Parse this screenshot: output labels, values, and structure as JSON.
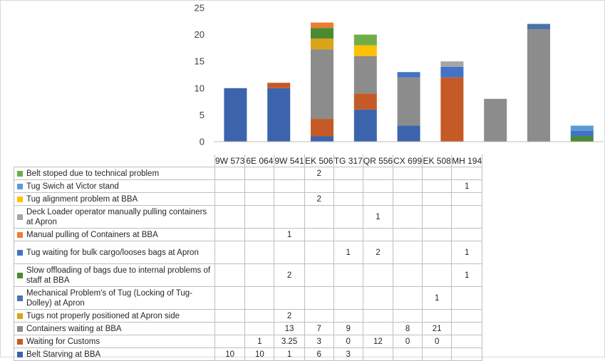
{
  "chart_data": {
    "type": "bar",
    "stacked": true,
    "categories": [
      "9W 573",
      "6E 064",
      "9W 541",
      "EK 506",
      "TG 317",
      "QR 556",
      "CX 699",
      "EK 508",
      "MH 194"
    ],
    "ylim": [
      0,
      25
    ],
    "yticks": [
      0,
      5,
      10,
      15,
      20,
      25
    ],
    "series": [
      {
        "name": "Belt Starving at BBA",
        "color": "#3b64ad",
        "values": [
          10,
          10,
          1,
          6,
          3,
          null,
          null,
          null,
          null
        ],
        "labels": [
          "10",
          "10",
          "1",
          "6",
          "3",
          "",
          "",
          "",
          ""
        ]
      },
      {
        "name": "Waiting for Customs",
        "color": "#c55a26",
        "values": [
          null,
          1,
          3.25,
          3,
          0,
          12,
          0,
          0,
          null
        ],
        "labels": [
          "",
          "1",
          "3.25",
          "3",
          "0",
          "12",
          "0",
          "0",
          ""
        ]
      },
      {
        "name": "Containers waiting at BBA",
        "color": "#8c8c8c",
        "values": [
          null,
          null,
          13,
          7,
          9,
          null,
          8,
          21,
          null
        ],
        "labels": [
          "",
          "",
          "13",
          "7",
          "9",
          "",
          "8",
          "21",
          ""
        ]
      },
      {
        "name": "Tugs not properly positioned at Apron side",
        "color": "#dba418",
        "values": [
          null,
          null,
          2,
          null,
          null,
          null,
          null,
          null,
          null
        ],
        "labels": [
          "",
          "",
          "2",
          "",
          "",
          "",
          "",
          "",
          ""
        ]
      },
      {
        "name": "Mechanical Problem's of Tug (Locking of Tug-Dolley) at Apron",
        "color": "#4a73a8",
        "values": [
          null,
          null,
          null,
          null,
          null,
          null,
          null,
          1,
          null
        ],
        "labels": [
          "",
          "",
          "",
          "",
          "",
          "",
          "",
          "1",
          ""
        ]
      },
      {
        "name": "Slow offloading of bags due to internal problems of staff at BBA",
        "color": "#4a8a32",
        "values": [
          null,
          null,
          2,
          null,
          null,
          null,
          null,
          null,
          1
        ],
        "labels": [
          "",
          "",
          "2",
          "",
          "",
          "",
          "",
          "",
          "1"
        ]
      },
      {
        "name": "Tug waiting for bulk cargo/looses bags at Apron",
        "color": "#4472c4",
        "values": [
          null,
          null,
          null,
          null,
          1,
          2,
          null,
          null,
          1
        ],
        "labels": [
          "",
          "",
          "",
          "",
          "1",
          "2",
          "",
          "",
          "1"
        ]
      },
      {
        "name": "Manual pulling of Containers at BBA",
        "color": "#ed7d31",
        "values": [
          null,
          null,
          1,
          null,
          null,
          null,
          null,
          null,
          null
        ],
        "labels": [
          "",
          "",
          "1",
          "",
          "",
          "",
          "",
          "",
          ""
        ]
      },
      {
        "name": "Deck Loader operator manually pulling containers at Apron",
        "color": "#a5a5a5",
        "values": [
          null,
          null,
          null,
          null,
          null,
          1,
          null,
          null,
          null
        ],
        "labels": [
          "",
          "",
          "",
          "",
          "",
          "1",
          "",
          "",
          ""
        ]
      },
      {
        "name": "Tug alignment problem at BBA",
        "color": "#ffc000",
        "values": [
          null,
          null,
          null,
          2,
          null,
          null,
          null,
          null,
          null
        ],
        "labels": [
          "",
          "",
          "",
          "2",
          "",
          "",
          "",
          "",
          ""
        ]
      },
      {
        "name": "Tug Swich at Victor stand",
        "color": "#5b9bd5",
        "values": [
          null,
          null,
          null,
          null,
          null,
          null,
          null,
          null,
          1
        ],
        "labels": [
          "",
          "",
          "",
          "",
          "",
          "",
          "",
          "",
          "1"
        ]
      },
      {
        "name": "Belt stoped due to technical problem",
        "color": "#70ad47",
        "values": [
          null,
          null,
          null,
          2,
          null,
          null,
          null,
          null,
          null
        ],
        "labels": [
          "",
          "",
          "",
          "2",
          "",
          "",
          "",
          "",
          ""
        ]
      }
    ]
  }
}
